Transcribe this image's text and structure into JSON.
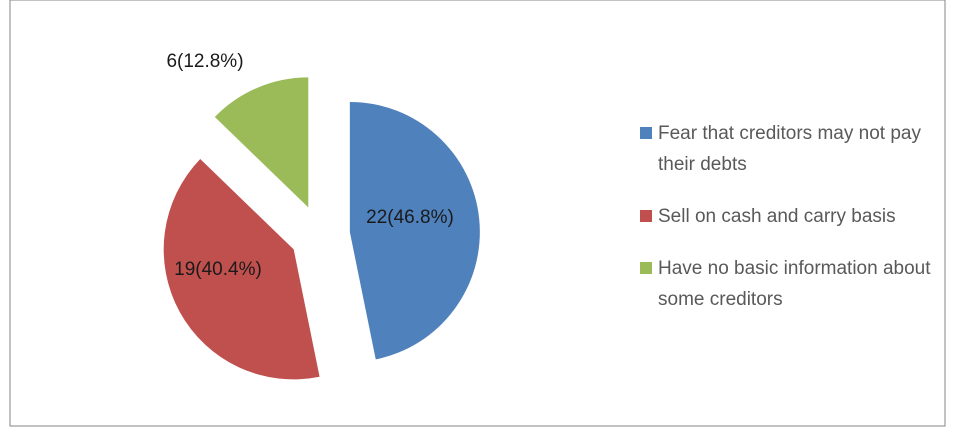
{
  "chart_data": {
    "type": "pie",
    "categories": [
      "Fear that creditors may not pay their debts",
      "Sell on cash and carry basis",
      "Have no basic information about some creditors"
    ],
    "values": [
      22,
      19,
      6
    ],
    "value_labels": [
      "22(46.8%)",
      "19(40.4%)",
      "6(12.8%)"
    ],
    "colors": [
      "#4f81bd",
      "#c0504d",
      "#9bbb59"
    ],
    "legend": "right"
  }
}
